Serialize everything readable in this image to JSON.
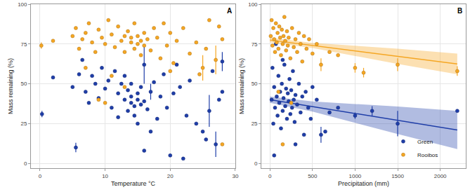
{
  "chart_data": [
    {
      "type": "scatter",
      "annotations": [
        "A"
      ],
      "x_label": "Temperature °C",
      "y_label": "Mass remaining (%)",
      "xlim": [
        -1.4,
        30
      ],
      "xticks": [
        0,
        10,
        20,
        30
      ],
      "ylim": [
        -3,
        100
      ],
      "yticks": [
        0,
        25,
        50,
        75,
        100
      ],
      "grid": true,
      "marker": "circle",
      "series": [
        {
          "name": "Green",
          "color": "#1f3ea8",
          "x": [
            0.3,
            2,
            5,
            5.5,
            6,
            6.5,
            7,
            7.5,
            8,
            8.5,
            9,
            9.5,
            10,
            10.5,
            11,
            11.5,
            12,
            12,
            12.5,
            13,
            13,
            13.5,
            13.5,
            14,
            14,
            14,
            14.5,
            14.5,
            15,
            15,
            15,
            15.5,
            15.5,
            16,
            16,
            16.5,
            17,
            17,
            17.5,
            18,
            18.5,
            19,
            19.5,
            20,
            20.5,
            21,
            21.5,
            22,
            22.5,
            23,
            24,
            25,
            25.5,
            26,
            26.5,
            27,
            27.5,
            28,
            28,
            16
          ],
          "values": [
            31,
            54,
            48,
            10,
            56,
            65,
            45,
            38,
            55,
            50,
            41,
            60,
            47,
            52,
            35,
            58,
            44,
            29,
            50,
            40,
            55,
            33,
            46,
            38,
            42,
            50,
            36,
            30,
            40,
            44,
            25,
            37,
            48,
            39,
            62,
            34,
            45,
            20,
            51,
            28,
            42,
            56,
            35,
            5,
            44,
            62,
            48,
            3,
            30,
            52,
            25,
            20,
            15,
            33,
            58,
            12,
            40,
            45,
            64,
            8
          ],
          "error": [
            2,
            0,
            0,
            3,
            0,
            0,
            0,
            0,
            0,
            0,
            0,
            0,
            0,
            0,
            0,
            0,
            0,
            0,
            0,
            0,
            0,
            0,
            0,
            0,
            0,
            0,
            0,
            0,
            0,
            0,
            0,
            0,
            0,
            0,
            12,
            0,
            5,
            0,
            0,
            0,
            0,
            0,
            0,
            0,
            0,
            0,
            0,
            0,
            0,
            0,
            0,
            0,
            0,
            10,
            0,
            8,
            0,
            0,
            6,
            0
          ]
        },
        {
          "name": "Rooibos",
          "color": "#f5a623",
          "x": [
            0.2,
            2,
            5,
            5.5,
            6,
            6.5,
            7,
            7.5,
            8,
            8.5,
            9,
            9.5,
            10,
            10.5,
            11,
            11.5,
            12,
            12.5,
            13,
            13,
            13.5,
            14,
            14,
            14.5,
            14.5,
            15,
            15,
            15.5,
            15.5,
            16,
            16,
            16.5,
            17,
            17.5,
            18,
            18.5,
            19,
            19.5,
            20,
            20.5,
            21,
            22,
            23,
            24,
            25,
            25.5,
            26,
            27,
            27.5,
            28,
            28,
            11,
            13,
            9,
            7,
            20,
            24.5,
            10
          ],
          "values": [
            74,
            77,
            80,
            85,
            72,
            78,
            82,
            88,
            76,
            70,
            84,
            79,
            75,
            90,
            81,
            73,
            86,
            77,
            80,
            70,
            83,
            76,
            79,
            72,
            88,
            75,
            80,
            77,
            68,
            82,
            74,
            78,
            71,
            85,
            79,
            66,
            88,
            74,
            82,
            63,
            77,
            85,
            69,
            76,
            60,
            72,
            90,
            65,
            86,
            78,
            12,
            55,
            48,
            40,
            60,
            58,
            56,
            38
          ],
          "error": [
            2,
            0,
            0,
            0,
            0,
            0,
            0,
            0,
            0,
            0,
            0,
            0,
            0,
            0,
            0,
            0,
            0,
            0,
            0,
            0,
            0,
            0,
            0,
            0,
            0,
            0,
            0,
            0,
            0,
            0,
            0,
            0,
            0,
            0,
            0,
            0,
            0,
            0,
            0,
            0,
            0,
            0,
            0,
            0,
            8,
            0,
            0,
            9,
            0,
            0,
            0,
            0,
            0,
            0,
            0,
            0,
            0,
            0
          ]
        }
      ]
    },
    {
      "type": "scatter",
      "annotations": [
        "B"
      ],
      "x_label": "Precipitation (mm)",
      "y_label": "Mass remaining (%)",
      "xlim": [
        -100,
        2300
      ],
      "xticks": [
        0,
        500,
        1000,
        1500,
        2000
      ],
      "ylim": [
        -3,
        100
      ],
      "yticks": [
        0,
        25,
        50,
        75,
        100
      ],
      "grid": true,
      "marker": "circle",
      "legend": "bottom right",
      "series": [
        {
          "name": "Green",
          "color": "#1f3ea8",
          "x": [
            20,
            30,
            40,
            50,
            60,
            70,
            80,
            90,
            100,
            110,
            120,
            130,
            140,
            150,
            160,
            170,
            180,
            190,
            200,
            210,
            220,
            230,
            240,
            250,
            260,
            270,
            280,
            290,
            300,
            320,
            340,
            360,
            380,
            400,
            420,
            450,
            480,
            500,
            550,
            600,
            650,
            700,
            800,
            1000,
            1200,
            1500,
            2200,
            50,
            300,
            150
          ],
          "values": [
            40,
            60,
            25,
            48,
            35,
            75,
            42,
            30,
            55,
            38,
            45,
            22,
            50,
            33,
            41,
            62,
            36,
            47,
            28,
            44,
            39,
            53,
            31,
            46,
            35,
            58,
            40,
            26,
            43,
            37,
            50,
            32,
            42,
            18,
            45,
            35,
            28,
            48,
            40,
            18,
            20,
            32,
            35,
            30,
            33,
            25,
            33,
            5,
            12,
            65
          ],
          "error": [
            0,
            0,
            0,
            0,
            0,
            0,
            0,
            0,
            0,
            0,
            0,
            0,
            0,
            0,
            0,
            0,
            0,
            0,
            0,
            0,
            0,
            0,
            0,
            0,
            0,
            0,
            0,
            0,
            0,
            0,
            0,
            0,
            0,
            0,
            0,
            0,
            0,
            0,
            0,
            5,
            0,
            0,
            0,
            2,
            3,
            8,
            0,
            0,
            0,
            0
          ],
          "fit": {
            "x": [
              0,
              500,
              1000,
              1500,
              2200
            ],
            "values": [
              40,
              35.7,
              31.4,
              27.1,
              21
            ],
            "lower": [
              38,
              32.5,
              25.5,
              18.5,
              9
            ],
            "upper": [
              42,
              38.9,
              37.3,
              35.7,
              33
            ]
          }
        },
        {
          "name": "Rooibos",
          "color": "#f5a623",
          "x": [
            10,
            20,
            30,
            40,
            50,
            60,
            70,
            80,
            90,
            100,
            110,
            120,
            130,
            140,
            150,
            160,
            170,
            180,
            190,
            200,
            210,
            220,
            240,
            260,
            280,
            300,
            320,
            340,
            360,
            380,
            400,
            430,
            460,
            500,
            550,
            600,
            700,
            800,
            1000,
            1100,
            1500,
            2200,
            250,
            100,
            150
          ],
          "values": [
            80,
            90,
            74,
            85,
            78,
            70,
            88,
            76,
            82,
            72,
            86,
            79,
            68,
            84,
            75,
            80,
            92,
            77,
            71,
            83,
            74,
            79,
            66,
            85,
            73,
            78,
            70,
            82,
            75,
            64,
            80,
            72,
            78,
            69,
            75,
            62,
            70,
            68,
            60,
            57,
            62,
            58,
            38,
            45,
            12
          ],
          "error": [
            0,
            0,
            0,
            0,
            0,
            0,
            0,
            0,
            0,
            0,
            0,
            0,
            0,
            0,
            0,
            0,
            0,
            0,
            0,
            0,
            0,
            0,
            0,
            0,
            0,
            0,
            0,
            0,
            0,
            0,
            0,
            0,
            0,
            0,
            0,
            4,
            0,
            0,
            3,
            3,
            4,
            3,
            0,
            0,
            0
          ],
          "fit": {
            "x": [
              0,
              500,
              1000,
              1500,
              2200
            ],
            "values": [
              77.5,
              74.1,
              70.7,
              67.3,
              62.5
            ],
            "lower": [
              76,
              72.5,
              67.5,
              62.5,
              56
            ],
            "upper": [
              79,
              75.7,
              73.9,
              72.1,
              69
            ]
          }
        }
      ]
    }
  ]
}
